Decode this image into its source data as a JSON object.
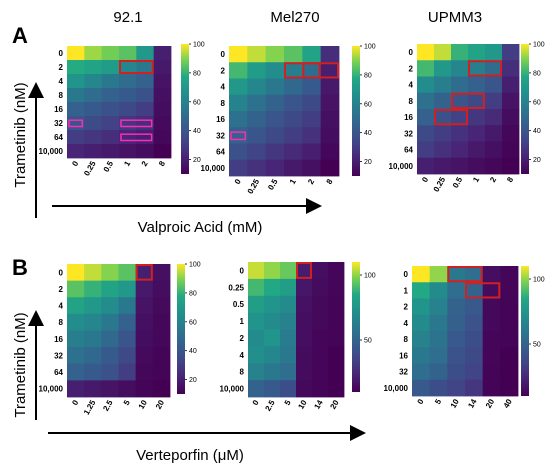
{
  "colors": {
    "box": "#d22020",
    "pinkbox": "#ff2bb5",
    "arrow": "#000000"
  },
  "figure": {
    "panel_a": "A",
    "panel_b": "B",
    "col_titles": [
      "92.1",
      "Mel270",
      "UPMM3"
    ],
    "ylabel_a": "Trametinib (nM)",
    "ylabel_b": "Trametinib (nM)",
    "xlabel_a": "Valproic Acid (mM)",
    "xlabel_b": "Verteporfin (μM)"
  },
  "chart_data": [
    {
      "type": "heatmap",
      "id": "a1",
      "title": "92.1",
      "x_ticks": [
        "0",
        "0.25",
        "0.5",
        "1",
        "2",
        "8"
      ],
      "y_ticks": [
        "0",
        "2",
        "4",
        "8",
        "16",
        "32",
        "64",
        "10,000"
      ],
      "values": [
        [
          100,
          92,
          88,
          85,
          70,
          20
        ],
        [
          78,
          75,
          72,
          62,
          55,
          18
        ],
        [
          68,
          62,
          55,
          50,
          45,
          16
        ],
        [
          55,
          50,
          45,
          42,
          38,
          15
        ],
        [
          45,
          42,
          38,
          35,
          30,
          14
        ],
        [
          40,
          36,
          32,
          28,
          25,
          13
        ],
        [
          30,
          28,
          25,
          22,
          20,
          12
        ],
        [
          22,
          20,
          18,
          16,
          14,
          10
        ]
      ],
      "colorbar_ticks": [
        100,
        80,
        60,
        40,
        20
      ],
      "clim": [
        10,
        100
      ],
      "highlights": [
        {
          "row": 1,
          "cols": [
            3,
            4
          ],
          "color": "red"
        }
      ],
      "pink_marks": [
        {
          "row": 5,
          "cols": [
            0,
            0
          ]
        },
        {
          "row": 5,
          "cols": [
            3,
            4
          ]
        },
        {
          "row": 6,
          "cols": [
            3,
            4
          ]
        }
      ]
    },
    {
      "type": "heatmap",
      "id": "a2",
      "title": "Mel270",
      "x_ticks": [
        "0",
        "0.25",
        "0.5",
        "1",
        "2",
        "8"
      ],
      "y_ticks": [
        "0",
        "2",
        "4",
        "8",
        "16",
        "32",
        "64",
        "10,000"
      ],
      "values": [
        [
          100,
          95,
          90,
          85,
          75,
          25
        ],
        [
          82,
          72,
          65,
          58,
          50,
          20
        ],
        [
          70,
          62,
          55,
          48,
          42,
          18
        ],
        [
          60,
          52,
          46,
          40,
          35,
          16
        ],
        [
          52,
          46,
          40,
          35,
          30,
          15
        ],
        [
          45,
          40,
          35,
          30,
          26,
          14
        ],
        [
          38,
          33,
          28,
          24,
          20,
          12
        ],
        [
          30,
          26,
          22,
          18,
          15,
          10
        ]
      ],
      "colorbar_ticks": [
        100,
        80,
        60,
        40,
        20
      ],
      "clim": [
        10,
        100
      ],
      "highlights": [
        {
          "row": 1,
          "cols": [
            3,
            4
          ],
          "color": "red"
        },
        {
          "row": 1,
          "cols": [
            4,
            5
          ],
          "color": "red"
        }
      ],
      "pink_marks": [
        {
          "row": 5,
          "cols": [
            0,
            0
          ]
        }
      ]
    },
    {
      "type": "heatmap",
      "id": "a3",
      "title": "UPMM3",
      "x_ticks": [
        "0",
        "0.25",
        "0.5",
        "1",
        "2",
        "8"
      ],
      "y_ticks": [
        "0",
        "2",
        "4",
        "8",
        "16",
        "32",
        "64",
        "10,000"
      ],
      "values": [
        [
          100,
          95,
          80,
          75,
          70,
          30
        ],
        [
          82,
          70,
          62,
          58,
          50,
          25
        ],
        [
          65,
          58,
          50,
          45,
          40,
          20
        ],
        [
          52,
          46,
          40,
          35,
          30,
          16
        ],
        [
          45,
          38,
          32,
          28,
          24,
          14
        ],
        [
          35,
          30,
          26,
          22,
          18,
          12
        ],
        [
          30,
          26,
          22,
          18,
          15,
          11
        ],
        [
          20,
          18,
          16,
          14,
          12,
          10
        ]
      ],
      "colorbar_ticks": [
        100,
        80,
        60,
        40,
        20
      ],
      "clim": [
        10,
        100
      ],
      "highlights": [
        {
          "row": 1,
          "cols": [
            3,
            4
          ],
          "color": "red"
        },
        {
          "row": 3,
          "cols": [
            2,
            3
          ],
          "color": "red"
        },
        {
          "row": 4,
          "cols": [
            1,
            2
          ],
          "color": "red"
        }
      ],
      "pink_marks": []
    },
    {
      "type": "heatmap",
      "id": "b1",
      "title": "92.1",
      "x_ticks": [
        "0",
        "1.25",
        "2.5",
        "5",
        "10",
        "20"
      ],
      "y_ticks": [
        "0",
        "2",
        "4",
        "8",
        "16",
        "32",
        "64",
        "10,000"
      ],
      "values": [
        [
          100,
          95,
          90,
          85,
          20,
          15
        ],
        [
          85,
          80,
          75,
          70,
          18,
          14
        ],
        [
          75,
          70,
          65,
          55,
          16,
          13
        ],
        [
          65,
          62,
          55,
          45,
          15,
          12
        ],
        [
          58,
          55,
          48,
          40,
          14,
          12
        ],
        [
          52,
          48,
          42,
          35,
          13,
          11
        ],
        [
          45,
          42,
          38,
          30,
          12,
          11
        ],
        [
          20,
          18,
          16,
          14,
          11,
          10
        ]
      ],
      "colorbar_ticks": [
        100,
        80,
        60,
        40,
        20
      ],
      "clim": [
        10,
        100
      ],
      "highlights": [
        {
          "row": 0,
          "cols": [
            4,
            4
          ],
          "color": "red"
        }
      ],
      "pink_marks": []
    },
    {
      "type": "heatmap",
      "id": "b2",
      "title": "Mel270",
      "x_ticks": [
        "0",
        "2.5",
        "5",
        "10",
        "14",
        "20"
      ],
      "y_ticks": [
        "0",
        "0.25",
        "0.5",
        "1",
        "2",
        "4",
        "8",
        "10,000"
      ],
      "values": [
        [
          105,
          100,
          95,
          20,
          15,
          12
        ],
        [
          90,
          85,
          80,
          18,
          14,
          12
        ],
        [
          80,
          75,
          70,
          16,
          13,
          11
        ],
        [
          75,
          70,
          65,
          15,
          13,
          11
        ],
        [
          70,
          75,
          62,
          15,
          12,
          11
        ],
        [
          72,
          68,
          60,
          14,
          12,
          10
        ],
        [
          65,
          60,
          55,
          14,
          12,
          10
        ],
        [
          50,
          45,
          40,
          13,
          11,
          10
        ]
      ],
      "colorbar_ticks": [
        100,
        50
      ],
      "clim": [
        10,
        110
      ],
      "highlights": [
        {
          "row": 0,
          "cols": [
            3,
            3
          ],
          "color": "red"
        }
      ],
      "pink_marks": []
    },
    {
      "type": "heatmap",
      "id": "b3",
      "title": "UPMM3",
      "x_ticks": [
        "0",
        "5",
        "10",
        "14",
        "20",
        "40"
      ],
      "y_ticks": [
        "0",
        "1",
        "2",
        "4",
        "8",
        "16",
        "32",
        "10,000"
      ],
      "values": [
        [
          110,
          100,
          60,
          55,
          15,
          12
        ],
        [
          85,
          70,
          55,
          50,
          14,
          12
        ],
        [
          75,
          65,
          50,
          45,
          13,
          11
        ],
        [
          70,
          60,
          48,
          42,
          13,
          11
        ],
        [
          65,
          58,
          45,
          40,
          12,
          11
        ],
        [
          60,
          55,
          42,
          38,
          12,
          10
        ],
        [
          55,
          50,
          40,
          35,
          11,
          10
        ],
        [
          45,
          40,
          35,
          30,
          11,
          10
        ]
      ],
      "colorbar_ticks": [
        100,
        50
      ],
      "clim": [
        10,
        110
      ],
      "highlights": [
        {
          "row": 0,
          "cols": [
            2,
            3
          ],
          "color": "red"
        },
        {
          "row": 1,
          "cols": [
            3,
            4
          ],
          "color": "red"
        }
      ],
      "pink_marks": []
    }
  ]
}
